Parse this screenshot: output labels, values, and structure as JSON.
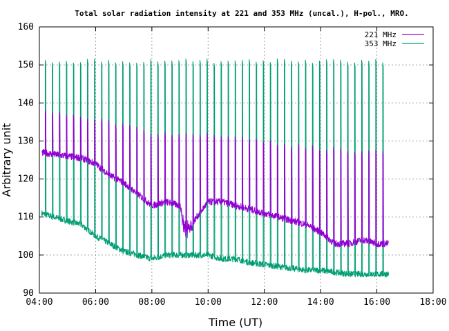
{
  "chart_data": {
    "type": "line",
    "title": "Total solar radiation intensity at 221 and 353 MHz (uncal.), H-pol., MRO.",
    "xlabel": "Time (UT)",
    "ylabel": "Arbitrary unit",
    "xlim_hours": [
      4,
      18
    ],
    "ylim": [
      90,
      160
    ],
    "x_ticks": [
      "04:00",
      "06:00",
      "08:00",
      "10:00",
      "12:00",
      "14:00",
      "16:00",
      "18:00"
    ],
    "y_ticks": [
      "90",
      "100",
      "110",
      "120",
      "130",
      "140",
      "150",
      "160"
    ],
    "grid": true,
    "legend_position": "top-right",
    "series": [
      {
        "name": "221 MHz",
        "color": "#9400d3",
        "time_range": [
          "04:05",
          "16:25"
        ],
        "baseline": [
          [
            "04:05",
            127
          ],
          [
            "04:30",
            126.5
          ],
          [
            "05:00",
            126
          ],
          [
            "05:30",
            125.5
          ],
          [
            "06:00",
            124
          ],
          [
            "06:30",
            121
          ],
          [
            "07:00",
            119
          ],
          [
            "07:30",
            116
          ],
          [
            "08:00",
            113
          ],
          [
            "08:30",
            114
          ],
          [
            "09:00",
            113
          ],
          [
            "09:10",
            109
          ],
          [
            "09:30",
            109
          ],
          [
            "10:00",
            114
          ],
          [
            "10:30",
            114
          ],
          [
            "11:00",
            113
          ],
          [
            "11:30",
            112
          ],
          [
            "12:00",
            111
          ],
          [
            "12:30",
            110
          ],
          [
            "13:00",
            109
          ],
          [
            "13:30",
            108
          ],
          [
            "14:00",
            106
          ],
          [
            "14:30",
            103
          ],
          [
            "15:00",
            103
          ],
          [
            "15:30",
            104
          ],
          [
            "16:00",
            103
          ],
          [
            "16:25",
            103
          ]
        ],
        "calibration_peak": [
          [
            "04:05",
            138
          ],
          [
            "06:00",
            136
          ],
          [
            "08:00",
            132
          ],
          [
            "10:00",
            132
          ],
          [
            "12:00",
            130
          ],
          [
            "14:00",
            128
          ],
          [
            "16:25",
            127
          ]
        ]
      },
      {
        "name": "353 MHz",
        "color": "#009e73",
        "time_range": [
          "04:05",
          "16:25"
        ],
        "baseline": [
          [
            "04:05",
            111
          ],
          [
            "04:30",
            110
          ],
          [
            "05:00",
            109
          ],
          [
            "05:30",
            108
          ],
          [
            "06:00",
            105
          ],
          [
            "06:30",
            103
          ],
          [
            "07:00",
            101
          ],
          [
            "07:30",
            100
          ],
          [
            "08:00",
            99
          ],
          [
            "08:30",
            100
          ],
          [
            "09:00",
            100
          ],
          [
            "09:30",
            100
          ],
          [
            "10:00",
            100
          ],
          [
            "10:30",
            99
          ],
          [
            "11:00",
            99
          ],
          [
            "11:30",
            98
          ],
          [
            "12:00",
            97.5
          ],
          [
            "12:30",
            97
          ],
          [
            "13:00",
            96.5
          ],
          [
            "13:30",
            96
          ],
          [
            "14:00",
            96
          ],
          [
            "14:30",
            95.5
          ],
          [
            "15:00",
            95
          ],
          [
            "15:30",
            95
          ],
          [
            "16:00",
            95
          ],
          [
            "16:25",
            95
          ]
        ],
        "calibration_peak": [
          [
            "04:05",
            151
          ],
          [
            "16:25",
            151
          ]
        ]
      }
    ],
    "calibration_interval_minutes": 15
  }
}
